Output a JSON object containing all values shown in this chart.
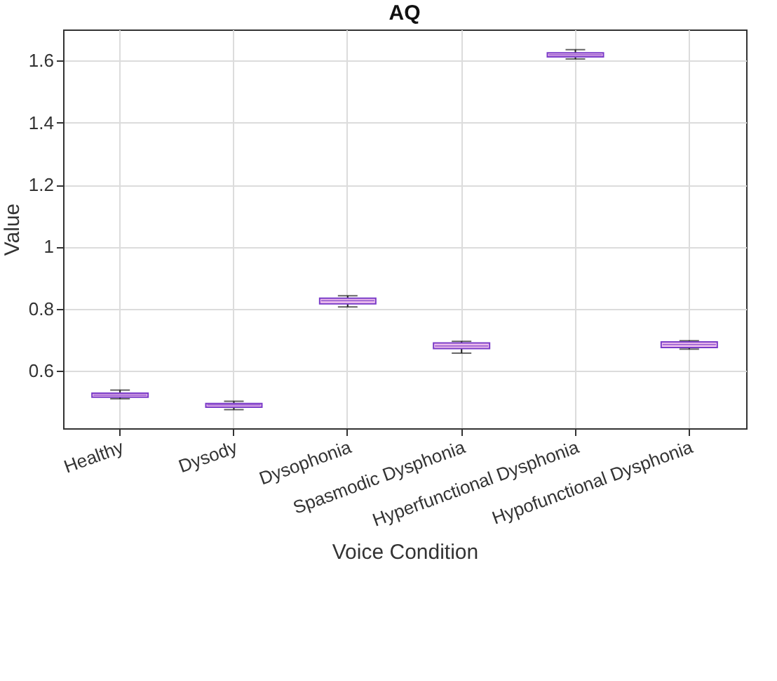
{
  "chart_data": {
    "type": "box",
    "title": "AQ",
    "xlabel": "Voice Condition",
    "ylabel": "Value",
    "categories": [
      "Healthy",
      "Dysody",
      "Dysophonia",
      "Spasmodic Dysphonia",
      "Hyperfunctional Dysphonia",
      "Hypofunctional Dysphonia"
    ],
    "boxes": [
      {
        "low": 0.51,
        "q1": 0.515,
        "median": 0.522,
        "q3": 0.528,
        "high": 0.538
      },
      {
        "low": 0.475,
        "q1": 0.483,
        "median": 0.49,
        "q3": 0.495,
        "high": 0.502
      },
      {
        "low": 0.806,
        "q1": 0.816,
        "median": 0.826,
        "q3": 0.834,
        "high": 0.842
      },
      {
        "low": 0.657,
        "q1": 0.672,
        "median": 0.68,
        "q3": 0.69,
        "high": 0.695
      },
      {
        "low": 1.605,
        "q1": 1.612,
        "median": 1.618,
        "q3": 1.625,
        "high": 1.635
      },
      {
        "low": 0.67,
        "q1": 0.675,
        "median": 0.685,
        "q3": 0.693,
        "high": 0.697
      }
    ],
    "color": "#7a3cc8",
    "ylim": [
      0.415,
      1.7
    ],
    "yticks": [
      0.6,
      0.8,
      1,
      1.2,
      1.4,
      1.6
    ],
    "grid": true
  }
}
